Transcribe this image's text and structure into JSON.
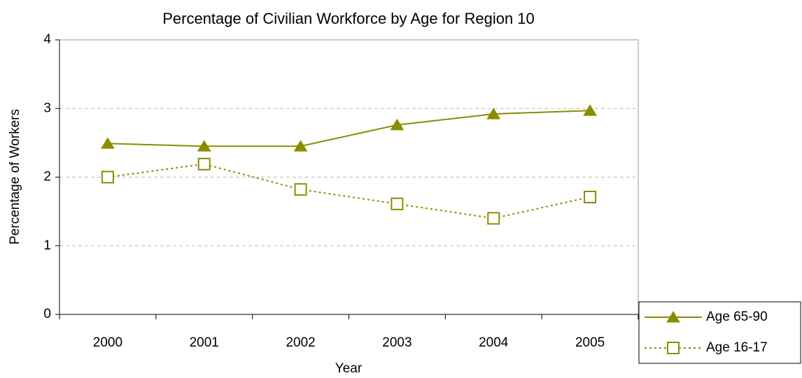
{
  "chart_data": {
    "type": "line",
    "title": "Percentage of Civilian Workforce by Age for Region 10",
    "x_label": "Year",
    "y_label": "Percentage of Workers",
    "categories": [
      "2000",
      "2001",
      "2002",
      "2003",
      "2004",
      "2005"
    ],
    "series": [
      {
        "name": "Age 65-90",
        "color": "#8c8c00",
        "marker": "triangle",
        "line_style": "solid",
        "values": [
          2.49,
          2.45,
          2.45,
          2.76,
          2.92,
          2.97
        ]
      },
      {
        "name": "Age 16-17",
        "color": "#8c8c00",
        "marker": "square",
        "line_style": "dotted",
        "values": [
          2.0,
          2.19,
          1.82,
          1.61,
          1.4,
          1.71
        ]
      }
    ],
    "ylim": [
      0,
      4
    ],
    "yticks": [
      0,
      1,
      2,
      3,
      4
    ],
    "grid": true,
    "legend": "right"
  }
}
